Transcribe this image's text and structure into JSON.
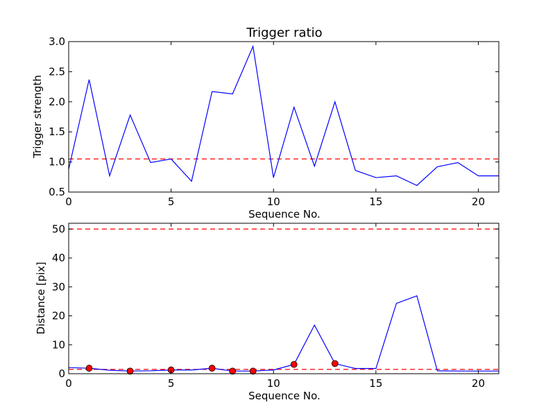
{
  "chart_data": [
    {
      "type": "line",
      "title": "Trigger ratio",
      "xlabel": "Sequence No.",
      "ylabel": "Trigger strength",
      "xlim": [
        0,
        21
      ],
      "ylim": [
        0.5,
        3.0
      ],
      "xticks": [
        0,
        5,
        10,
        15,
        20
      ],
      "xtick_labels": [
        "0",
        "5",
        "10",
        "15",
        "20"
      ],
      "yticks": [
        0.5,
        1.0,
        1.5,
        2.0,
        2.5,
        3.0
      ],
      "ytick_labels": [
        "0.5",
        "1.0",
        "1.5",
        "2.0",
        "2.5",
        "3.0"
      ],
      "grid": false,
      "series": [
        {
          "color": "#0000ff",
          "style": "solid",
          "x": [
            0,
            1,
            2,
            3,
            4,
            5,
            6,
            7,
            8,
            9,
            10,
            11,
            12,
            13,
            14,
            15,
            16,
            17,
            18,
            19,
            20,
            21
          ],
          "y": [
            0.88,
            2.37,
            0.77,
            1.78,
            0.99,
            1.05,
            0.68,
            2.17,
            2.13,
            2.92,
            0.74,
            1.91,
            0.93,
            2.0,
            0.86,
            0.74,
            0.77,
            0.61,
            0.92,
            0.99,
            0.77,
            0.77
          ]
        }
      ],
      "hlines": [
        {
          "y": 1.05,
          "color": "#ff0000",
          "style": "dashed"
        }
      ]
    },
    {
      "type": "line",
      "title": "",
      "xlabel": "Sequence No.",
      "ylabel": "Distance [pix]",
      "xlim": [
        0,
        21
      ],
      "ylim": [
        0,
        52
      ],
      "xticks": [
        0,
        5,
        10,
        15,
        20
      ],
      "xtick_labels": [
        "0",
        "5",
        "10",
        "15",
        "20"
      ],
      "yticks": [
        0,
        10,
        20,
        30,
        40,
        50
      ],
      "ytick_labels": [
        "0",
        "10",
        "20",
        "30",
        "40",
        "50"
      ],
      "grid": false,
      "series": [
        {
          "color": "#0000ff",
          "style": "solid",
          "x": [
            0,
            1,
            2,
            3,
            4,
            5,
            6,
            7,
            8,
            9,
            10,
            11,
            12,
            13,
            14,
            15,
            16,
            17,
            18,
            19,
            20,
            21
          ],
          "y": [
            2.1,
            1.9,
            1.2,
            0.9,
            1.0,
            1.3,
            1.3,
            1.9,
            0.9,
            0.9,
            1.3,
            3.2,
            16.8,
            3.5,
            1.8,
            1.8,
            24.3,
            26.9,
            1.0,
            0.9,
            0.9,
            0.9
          ]
        },
        {
          "color": "#ff0000",
          "style": "markers",
          "x": [
            1,
            3,
            5,
            7,
            8,
            9,
            11,
            13
          ],
          "y": [
            1.9,
            0.9,
            1.3,
            1.9,
            0.9,
            0.9,
            3.2,
            3.5
          ]
        }
      ],
      "hlines": [
        {
          "y": 50,
          "color": "#ff0000",
          "style": "dashed"
        },
        {
          "y": 1.5,
          "color": "#ff0000",
          "style": "dashed"
        }
      ]
    }
  ]
}
